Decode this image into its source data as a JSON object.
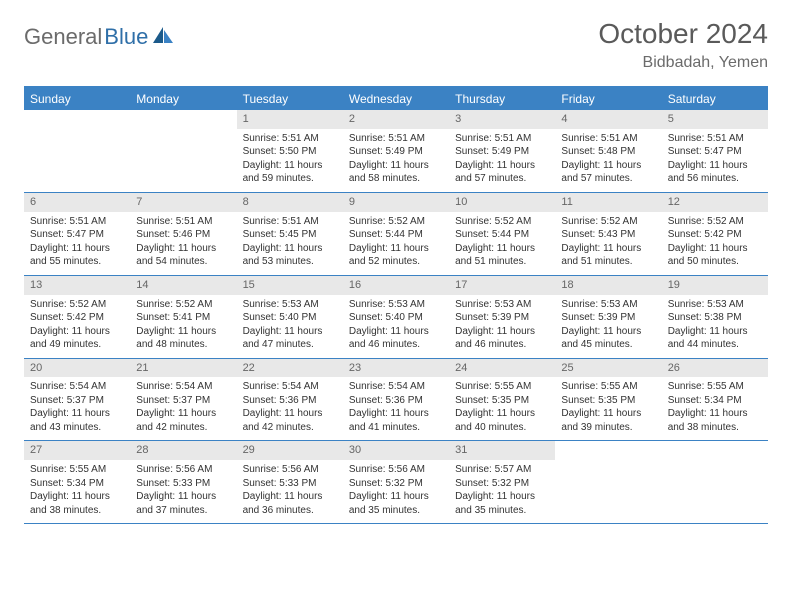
{
  "logo": {
    "text1": "General",
    "text2": "Blue"
  },
  "title": "October 2024",
  "location": "Bidbadah, Yemen",
  "colors": {
    "header_bg": "#3b82c4",
    "header_text": "#ffffff",
    "daynum_bg": "#e8e8e8",
    "daynum_text": "#666666",
    "body_text": "#333333",
    "logo_gray": "#6b6b6b",
    "logo_blue": "#2f6fa8"
  },
  "typography": {
    "title_fontsize": 28,
    "location_fontsize": 16,
    "header_fontsize": 12,
    "daynum_fontsize": 11,
    "body_fontsize": 10
  },
  "day_headers": [
    "Sunday",
    "Monday",
    "Tuesday",
    "Wednesday",
    "Thursday",
    "Friday",
    "Saturday"
  ],
  "weeks": [
    [
      {
        "n": "",
        "sr": "",
        "ss": "",
        "dl": ""
      },
      {
        "n": "",
        "sr": "",
        "ss": "",
        "dl": ""
      },
      {
        "n": "1",
        "sr": "Sunrise: 5:51 AM",
        "ss": "Sunset: 5:50 PM",
        "dl": "Daylight: 11 hours and 59 minutes."
      },
      {
        "n": "2",
        "sr": "Sunrise: 5:51 AM",
        "ss": "Sunset: 5:49 PM",
        "dl": "Daylight: 11 hours and 58 minutes."
      },
      {
        "n": "3",
        "sr": "Sunrise: 5:51 AM",
        "ss": "Sunset: 5:49 PM",
        "dl": "Daylight: 11 hours and 57 minutes."
      },
      {
        "n": "4",
        "sr": "Sunrise: 5:51 AM",
        "ss": "Sunset: 5:48 PM",
        "dl": "Daylight: 11 hours and 57 minutes."
      },
      {
        "n": "5",
        "sr": "Sunrise: 5:51 AM",
        "ss": "Sunset: 5:47 PM",
        "dl": "Daylight: 11 hours and 56 minutes."
      }
    ],
    [
      {
        "n": "6",
        "sr": "Sunrise: 5:51 AM",
        "ss": "Sunset: 5:47 PM",
        "dl": "Daylight: 11 hours and 55 minutes."
      },
      {
        "n": "7",
        "sr": "Sunrise: 5:51 AM",
        "ss": "Sunset: 5:46 PM",
        "dl": "Daylight: 11 hours and 54 minutes."
      },
      {
        "n": "8",
        "sr": "Sunrise: 5:51 AM",
        "ss": "Sunset: 5:45 PM",
        "dl": "Daylight: 11 hours and 53 minutes."
      },
      {
        "n": "9",
        "sr": "Sunrise: 5:52 AM",
        "ss": "Sunset: 5:44 PM",
        "dl": "Daylight: 11 hours and 52 minutes."
      },
      {
        "n": "10",
        "sr": "Sunrise: 5:52 AM",
        "ss": "Sunset: 5:44 PM",
        "dl": "Daylight: 11 hours and 51 minutes."
      },
      {
        "n": "11",
        "sr": "Sunrise: 5:52 AM",
        "ss": "Sunset: 5:43 PM",
        "dl": "Daylight: 11 hours and 51 minutes."
      },
      {
        "n": "12",
        "sr": "Sunrise: 5:52 AM",
        "ss": "Sunset: 5:42 PM",
        "dl": "Daylight: 11 hours and 50 minutes."
      }
    ],
    [
      {
        "n": "13",
        "sr": "Sunrise: 5:52 AM",
        "ss": "Sunset: 5:42 PM",
        "dl": "Daylight: 11 hours and 49 minutes."
      },
      {
        "n": "14",
        "sr": "Sunrise: 5:52 AM",
        "ss": "Sunset: 5:41 PM",
        "dl": "Daylight: 11 hours and 48 minutes."
      },
      {
        "n": "15",
        "sr": "Sunrise: 5:53 AM",
        "ss": "Sunset: 5:40 PM",
        "dl": "Daylight: 11 hours and 47 minutes."
      },
      {
        "n": "16",
        "sr": "Sunrise: 5:53 AM",
        "ss": "Sunset: 5:40 PM",
        "dl": "Daylight: 11 hours and 46 minutes."
      },
      {
        "n": "17",
        "sr": "Sunrise: 5:53 AM",
        "ss": "Sunset: 5:39 PM",
        "dl": "Daylight: 11 hours and 46 minutes."
      },
      {
        "n": "18",
        "sr": "Sunrise: 5:53 AM",
        "ss": "Sunset: 5:39 PM",
        "dl": "Daylight: 11 hours and 45 minutes."
      },
      {
        "n": "19",
        "sr": "Sunrise: 5:53 AM",
        "ss": "Sunset: 5:38 PM",
        "dl": "Daylight: 11 hours and 44 minutes."
      }
    ],
    [
      {
        "n": "20",
        "sr": "Sunrise: 5:54 AM",
        "ss": "Sunset: 5:37 PM",
        "dl": "Daylight: 11 hours and 43 minutes."
      },
      {
        "n": "21",
        "sr": "Sunrise: 5:54 AM",
        "ss": "Sunset: 5:37 PM",
        "dl": "Daylight: 11 hours and 42 minutes."
      },
      {
        "n": "22",
        "sr": "Sunrise: 5:54 AM",
        "ss": "Sunset: 5:36 PM",
        "dl": "Daylight: 11 hours and 42 minutes."
      },
      {
        "n": "23",
        "sr": "Sunrise: 5:54 AM",
        "ss": "Sunset: 5:36 PM",
        "dl": "Daylight: 11 hours and 41 minutes."
      },
      {
        "n": "24",
        "sr": "Sunrise: 5:55 AM",
        "ss": "Sunset: 5:35 PM",
        "dl": "Daylight: 11 hours and 40 minutes."
      },
      {
        "n": "25",
        "sr": "Sunrise: 5:55 AM",
        "ss": "Sunset: 5:35 PM",
        "dl": "Daylight: 11 hours and 39 minutes."
      },
      {
        "n": "26",
        "sr": "Sunrise: 5:55 AM",
        "ss": "Sunset: 5:34 PM",
        "dl": "Daylight: 11 hours and 38 minutes."
      }
    ],
    [
      {
        "n": "27",
        "sr": "Sunrise: 5:55 AM",
        "ss": "Sunset: 5:34 PM",
        "dl": "Daylight: 11 hours and 38 minutes."
      },
      {
        "n": "28",
        "sr": "Sunrise: 5:56 AM",
        "ss": "Sunset: 5:33 PM",
        "dl": "Daylight: 11 hours and 37 minutes."
      },
      {
        "n": "29",
        "sr": "Sunrise: 5:56 AM",
        "ss": "Sunset: 5:33 PM",
        "dl": "Daylight: 11 hours and 36 minutes."
      },
      {
        "n": "30",
        "sr": "Sunrise: 5:56 AM",
        "ss": "Sunset: 5:32 PM",
        "dl": "Daylight: 11 hours and 35 minutes."
      },
      {
        "n": "31",
        "sr": "Sunrise: 5:57 AM",
        "ss": "Sunset: 5:32 PM",
        "dl": "Daylight: 11 hours and 35 minutes."
      },
      {
        "n": "",
        "sr": "",
        "ss": "",
        "dl": ""
      },
      {
        "n": "",
        "sr": "",
        "ss": "",
        "dl": ""
      }
    ]
  ]
}
